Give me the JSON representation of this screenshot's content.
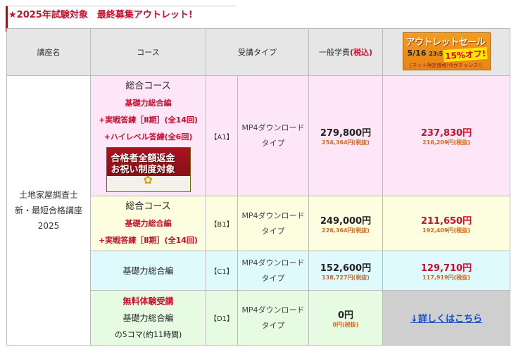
{
  "header": {
    "title": "★2025年試験対象　最終募集アウトレット!"
  },
  "columns": {
    "course_name": "講座名",
    "course": "コース",
    "type": "受講タイプ",
    "price": "一般学費",
    "price_tax": "(税込)"
  },
  "banner": {
    "line1": "アウトレットセール",
    "date": "5/16",
    "time": "23:59迄",
    "discount": "15%オフ!",
    "note": "［ネット限定価格!今がチャンス!］"
  },
  "course_name": {
    "line1": "土地家屋調査士",
    "line2": "新・最短合格講座",
    "line3": "2025"
  },
  "rows": [
    {
      "course_title": "総合コース",
      "course_l1": "基礎力総合編",
      "course_l2": "+実戦答練［Ⅱ期］(全14回)",
      "course_l3": "+ハイレベル答練(全6回)",
      "promo_l1": "合格者全額返金",
      "promo_l2": "お祝い制度対象",
      "code": "【A1】",
      "type_l1": "MP4ダウンロード",
      "type_l2": "タイプ",
      "price": "279,800円",
      "price_sub": "254,364円(税抜)",
      "sale": "237,830円",
      "sale_sub": "216,209円(税抜)"
    },
    {
      "course_title": "総合コース",
      "course_l1": "基礎力総合編",
      "course_l2": "+実戦答練［Ⅱ期］(全14回)",
      "code": "【B1】",
      "type_l1": "MP4ダウンロード",
      "type_l2": "タイプ",
      "price": "249,000円",
      "price_sub": "226,364円(税抜)",
      "sale": "211,650円",
      "sale_sub": "192,409円(税抜)"
    },
    {
      "course_title": "基礎力総合編",
      "code": "【C1】",
      "type_l1": "MP4ダウンロード",
      "type_l2": "タイプ",
      "price": "152,600円",
      "price_sub": "138,727円(税抜)",
      "sale": "129,710円",
      "sale_sub": "117,919円(税抜)"
    },
    {
      "course_l0": "無料体験受講",
      "course_title": "基礎力総合編",
      "course_l1": "の5コマ(約11時間)",
      "code": "【D1】",
      "type_l1": "MP4ダウンロード",
      "type_l2": "タイプ",
      "price": "0円",
      "price_sub": "0円(税抜)",
      "link": "↓詳しくはこちら"
    }
  ]
}
